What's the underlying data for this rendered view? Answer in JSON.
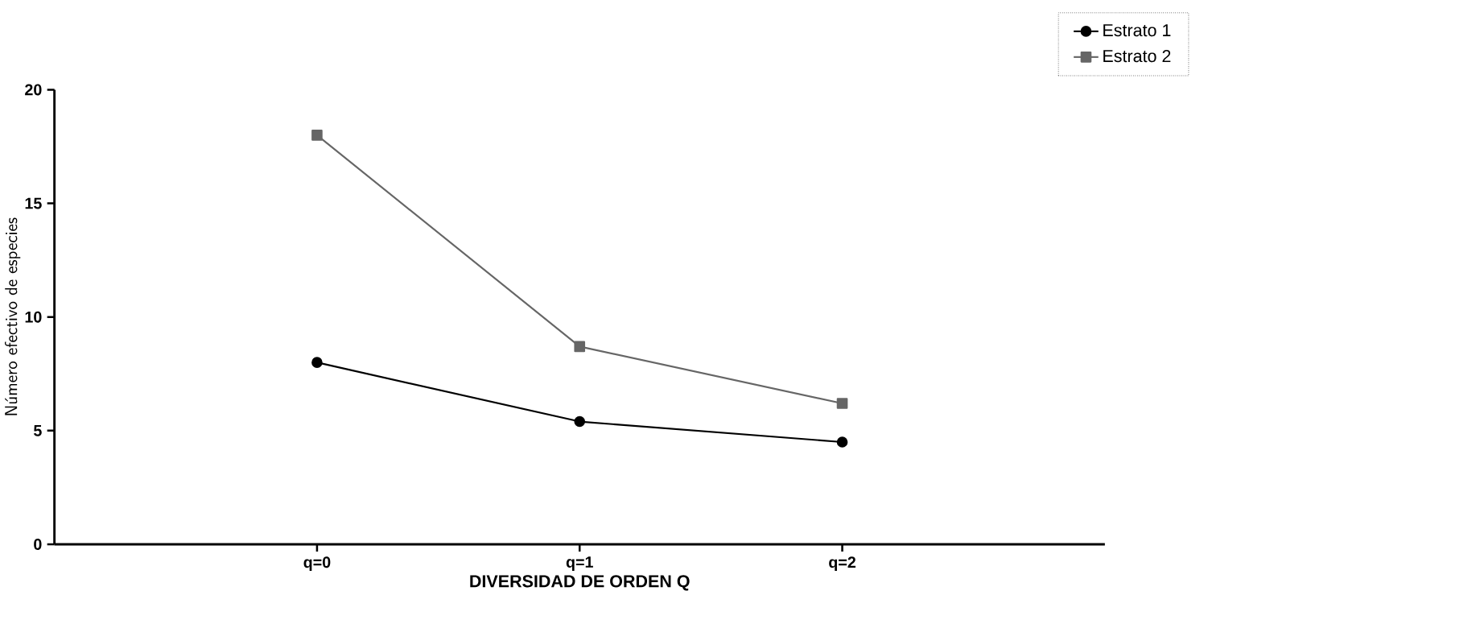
{
  "chart_data": {
    "type": "line",
    "xlabel": "DIVERSIDAD DE ORDEN Q",
    "ylabel": "Número efectivo de especies",
    "categories": [
      "q=0",
      "q=1",
      "q=2"
    ],
    "series": [
      {
        "name": "Estrato 1",
        "color": "#000000",
        "marker": "circle",
        "values": [
          8.0,
          5.4,
          4.5
        ]
      },
      {
        "name": "Estrato 2",
        "color": "#666666",
        "marker": "square",
        "values": [
          18.0,
          8.7,
          6.2
        ]
      }
    ],
    "ylim": [
      0,
      20
    ],
    "yticks": [
      0,
      5,
      10,
      15,
      20
    ],
    "grid": false,
    "legend": "top right",
    "line_style": "solid"
  }
}
